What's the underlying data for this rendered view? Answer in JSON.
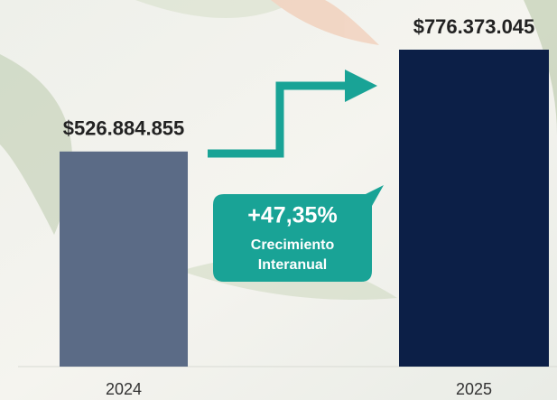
{
  "chart_data": {
    "type": "bar",
    "categories": [
      "2024",
      "2025"
    ],
    "values": [
      526884855,
      776373045
    ],
    "value_labels": [
      "$526.884.855",
      "$776.373.045"
    ],
    "colors": [
      "#5b6b86",
      "#0c1f47"
    ],
    "annotation": {
      "change": "+47,35%",
      "lines": [
        "Crecimiento",
        "Interanual"
      ]
    }
  }
}
